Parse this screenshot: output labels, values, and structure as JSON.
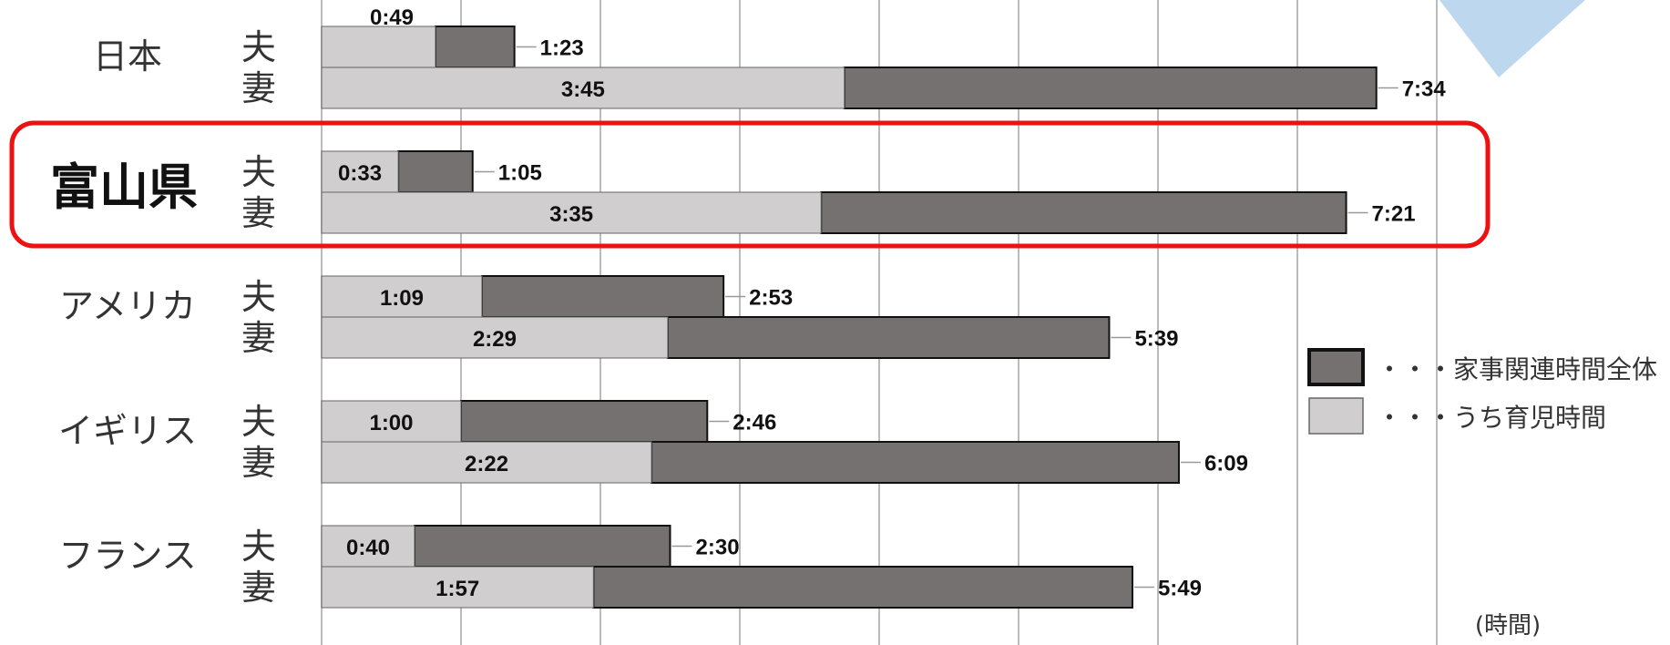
{
  "chart_data": {
    "type": "bar",
    "orientation": "horizontal",
    "stacked": true,
    "x_unit_label": "(時間)",
    "x_range_minutes": [
      0,
      480
    ],
    "grid": true,
    "highlight_country": "富山県",
    "legend": {
      "placement": "right",
      "entries": [
        {
          "label": "・・・家事関連時間全体",
          "color": "#757170"
        },
        {
          "label": "・・・うち育児時間",
          "color": "#D0CECE"
        }
      ]
    },
    "countries": [
      {
        "name": "日本",
        "highlight": false,
        "rows": [
          {
            "role": "夫",
            "childcare": "0:49",
            "total": "1:23",
            "childcare_min": 49,
            "total_min": 83
          },
          {
            "role": "妻",
            "childcare": "3:45",
            "total": "7:34",
            "childcare_min": 225,
            "total_min": 454
          }
        ]
      },
      {
        "name": "富山県",
        "highlight": true,
        "rows": [
          {
            "role": "夫",
            "childcare": "0:33",
            "total": "1:05",
            "childcare_min": 33,
            "total_min": 65
          },
          {
            "role": "妻",
            "childcare": "3:35",
            "total": "7:21",
            "childcare_min": 215,
            "total_min": 441
          }
        ]
      },
      {
        "name": "アメリカ",
        "highlight": false,
        "rows": [
          {
            "role": "夫",
            "childcare": "1:09",
            "total": "2:53",
            "childcare_min": 69,
            "total_min": 173
          },
          {
            "role": "妻",
            "childcare": "2:29",
            "total": "5:39",
            "childcare_min": 149,
            "total_min": 339
          }
        ]
      },
      {
        "name": "イギリス",
        "highlight": false,
        "rows": [
          {
            "role": "夫",
            "childcare": "1:00",
            "total": "2:46",
            "childcare_min": 60,
            "total_min": 166
          },
          {
            "role": "妻",
            "childcare": "2:22",
            "total": "6:09",
            "childcare_min": 142,
            "total_min": 369
          }
        ]
      },
      {
        "name": "フランス",
        "highlight": false,
        "rows": [
          {
            "role": "夫",
            "childcare": "0:40",
            "total": "2:30",
            "childcare_min": 40,
            "total_min": 150
          },
          {
            "role": "妻",
            "childcare": "1:57",
            "total": "5:49",
            "childcare_min": 117,
            "total_min": 349
          }
        ]
      }
    ]
  },
  "colors": {
    "total": "#757170",
    "childcare": "#D0CECE",
    "highlight_border": "#EE1111",
    "grid": "#BBBBBB",
    "accent_triangle": "#BCD7EE"
  }
}
